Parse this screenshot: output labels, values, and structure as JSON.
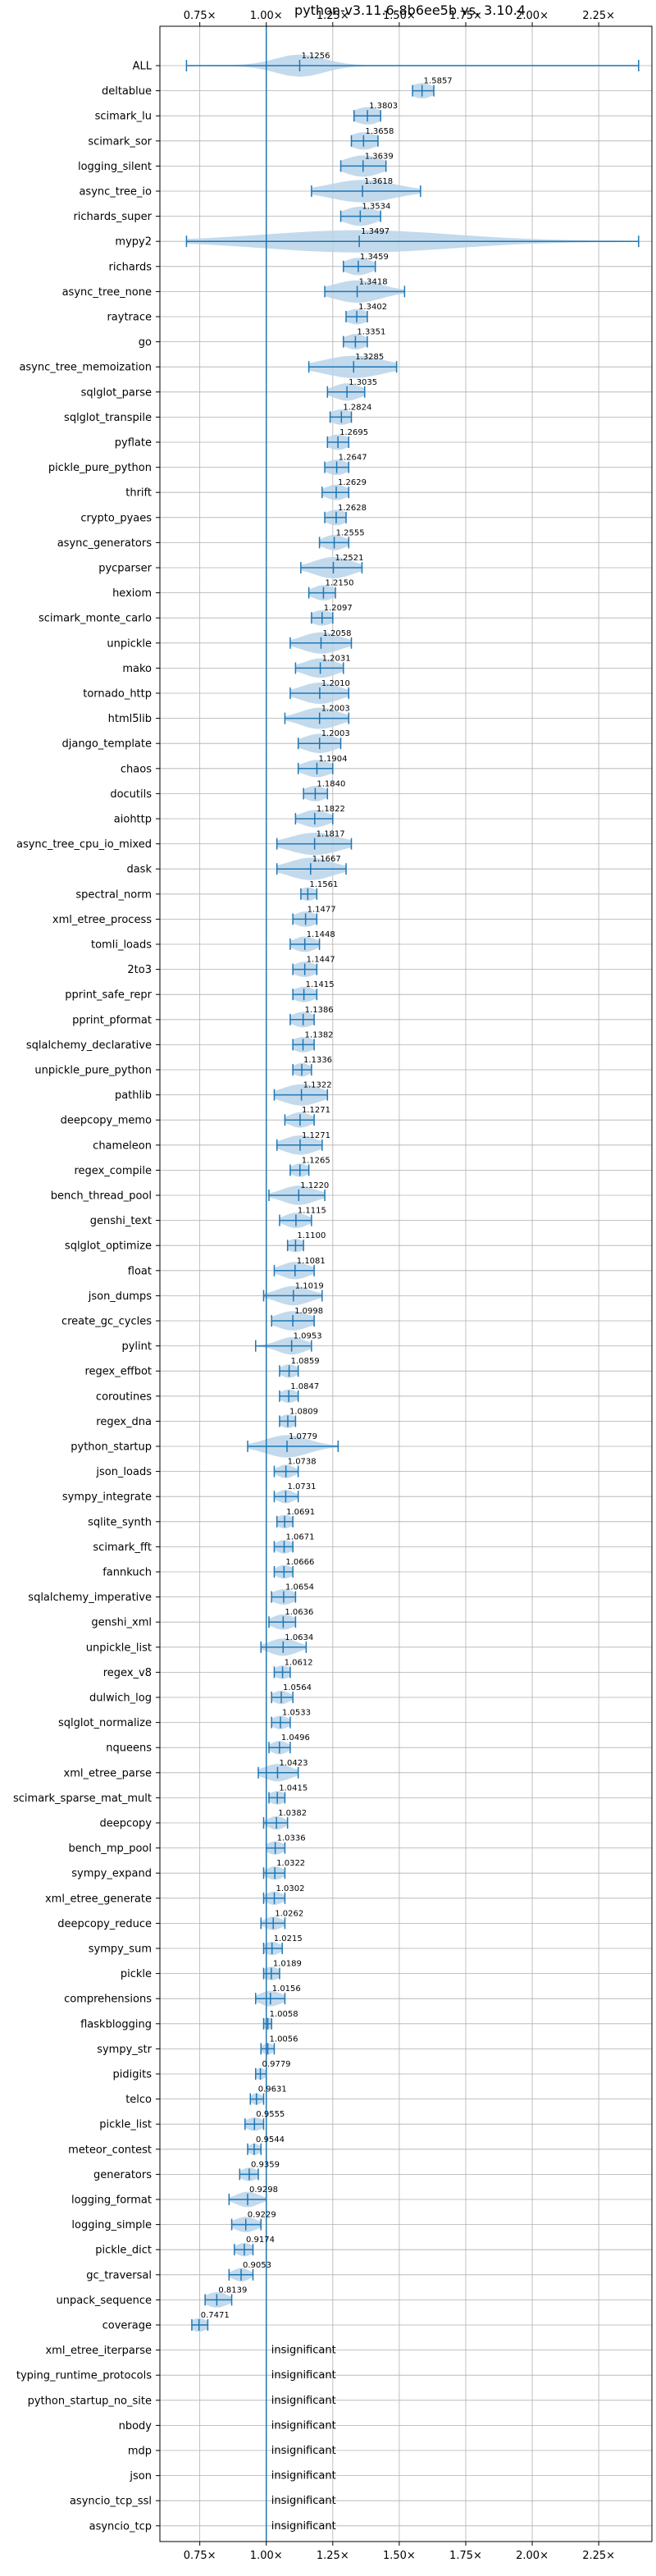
{
  "chart_data": {
    "type": "violin",
    "title": "python-v3.11.6-8b6ee5b vs. 3.10.4",
    "orientation": "horizontal",
    "xlim": [
      0.6,
      2.45
    ],
    "x_ticks": [
      0.75,
      1.0,
      1.25,
      1.5,
      1.75,
      2.0,
      2.25
    ],
    "x_tick_labels": [
      "0.75×",
      "1.00×",
      "1.25×",
      "1.50×",
      "1.75×",
      "2.00×",
      "2.25×"
    ],
    "reference_line": 1.0,
    "grid": true,
    "colors": {
      "violin": "#b9d4ea",
      "line": "#1f77b4"
    },
    "insignificant_label": "insignificant",
    "benchmarks": [
      {
        "name": "ALL",
        "value": 1.1256,
        "label": "1.1256",
        "min": 0.7,
        "max": 2.4,
        "spread": 0.09
      },
      {
        "name": "deltablue",
        "value": 1.5857,
        "label": "1.5857",
        "min": 1.55,
        "max": 1.63,
        "spread": 0.04
      },
      {
        "name": "scimark_lu",
        "value": 1.3803,
        "label": "1.3803",
        "min": 1.33,
        "max": 1.43,
        "spread": 0.05
      },
      {
        "name": "scimark_sor",
        "value": 1.3658,
        "label": "1.3658",
        "min": 1.32,
        "max": 1.42,
        "spread": 0.05
      },
      {
        "name": "logging_silent",
        "value": 1.3639,
        "label": "1.3639",
        "min": 1.28,
        "max": 1.45,
        "spread": 0.07
      },
      {
        "name": "async_tree_io",
        "value": 1.3618,
        "label": "1.3618",
        "min": 1.17,
        "max": 1.58,
        "spread": 0.12
      },
      {
        "name": "richards_super",
        "value": 1.3534,
        "label": "1.3534",
        "min": 1.28,
        "max": 1.43,
        "spread": 0.06
      },
      {
        "name": "mypy2",
        "value": 1.3497,
        "label": "1.3497",
        "min": 0.7,
        "max": 2.4,
        "spread": 0.35
      },
      {
        "name": "richards",
        "value": 1.3459,
        "label": "1.3459",
        "min": 1.29,
        "max": 1.41,
        "spread": 0.05
      },
      {
        "name": "async_tree_none",
        "value": 1.3418,
        "label": "1.3418",
        "min": 1.22,
        "max": 1.52,
        "spread": 0.09
      },
      {
        "name": "raytrace",
        "value": 1.3402,
        "label": "1.3402",
        "min": 1.3,
        "max": 1.38,
        "spread": 0.04
      },
      {
        "name": "go",
        "value": 1.3351,
        "label": "1.3351",
        "min": 1.29,
        "max": 1.38,
        "spread": 0.04
      },
      {
        "name": "async_tree_memoization",
        "value": 1.3285,
        "label": "1.3285",
        "min": 1.16,
        "max": 1.49,
        "spread": 0.11
      },
      {
        "name": "sqlglot_parse",
        "value": 1.3035,
        "label": "1.3035",
        "min": 1.23,
        "max": 1.37,
        "spread": 0.05
      },
      {
        "name": "sqlglot_transpile",
        "value": 1.2824,
        "label": "1.2824",
        "min": 1.24,
        "max": 1.32,
        "spread": 0.04
      },
      {
        "name": "pyflate",
        "value": 1.2695,
        "label": "1.2695",
        "min": 1.23,
        "max": 1.31,
        "spread": 0.04
      },
      {
        "name": "pickle_pure_python",
        "value": 1.2647,
        "label": "1.2647",
        "min": 1.22,
        "max": 1.31,
        "spread": 0.04
      },
      {
        "name": "thrift",
        "value": 1.2629,
        "label": "1.2629",
        "min": 1.21,
        "max": 1.31,
        "spread": 0.04
      },
      {
        "name": "crypto_pyaes",
        "value": 1.2628,
        "label": "1.2628",
        "min": 1.22,
        "max": 1.3,
        "spread": 0.04
      },
      {
        "name": "async_generators",
        "value": 1.2555,
        "label": "1.2555",
        "min": 1.2,
        "max": 1.31,
        "spread": 0.04
      },
      {
        "name": "pycparser",
        "value": 1.2521,
        "label": "1.2521",
        "min": 1.13,
        "max": 1.36,
        "spread": 0.07
      },
      {
        "name": "hexiom",
        "value": 1.215,
        "label": "1.2150",
        "min": 1.16,
        "max": 1.26,
        "spread": 0.04
      },
      {
        "name": "scimark_monte_carlo",
        "value": 1.2097,
        "label": "1.2097",
        "min": 1.17,
        "max": 1.25,
        "spread": 0.04
      },
      {
        "name": "unpickle",
        "value": 1.2058,
        "label": "1.2058",
        "min": 1.09,
        "max": 1.32,
        "spread": 0.07
      },
      {
        "name": "mako",
        "value": 1.2031,
        "label": "1.2031",
        "min": 1.11,
        "max": 1.29,
        "spread": 0.06
      },
      {
        "name": "tornado_http",
        "value": 1.201,
        "label": "1.2010",
        "min": 1.09,
        "max": 1.31,
        "spread": 0.07
      },
      {
        "name": "html5lib",
        "value": 1.2003,
        "label": "1.2003",
        "min": 1.07,
        "max": 1.31,
        "spread": 0.07
      },
      {
        "name": "django_template",
        "value": 1.2003,
        "label": "1.2003",
        "min": 1.12,
        "max": 1.28,
        "spread": 0.06
      },
      {
        "name": "chaos",
        "value": 1.1904,
        "label": "1.1904",
        "min": 1.12,
        "max": 1.25,
        "spread": 0.05
      },
      {
        "name": "docutils",
        "value": 1.184,
        "label": "1.1840",
        "min": 1.14,
        "max": 1.23,
        "spread": 0.04
      },
      {
        "name": "aiohttp",
        "value": 1.1822,
        "label": "1.1822",
        "min": 1.11,
        "max": 1.25,
        "spread": 0.05
      },
      {
        "name": "async_tree_cpu_io_mixed",
        "value": 1.1817,
        "label": "1.1817",
        "min": 1.04,
        "max": 1.32,
        "spread": 0.09
      },
      {
        "name": "dask",
        "value": 1.1667,
        "label": "1.1667",
        "min": 1.04,
        "max": 1.3,
        "spread": 0.08
      },
      {
        "name": "spectral_norm",
        "value": 1.1561,
        "label": "1.1561",
        "min": 1.13,
        "max": 1.19,
        "spread": 0.03
      },
      {
        "name": "xml_etree_process",
        "value": 1.1477,
        "label": "1.1477",
        "min": 1.1,
        "max": 1.19,
        "spread": 0.04
      },
      {
        "name": "tomli_loads",
        "value": 1.1448,
        "label": "1.1448",
        "min": 1.09,
        "max": 1.2,
        "spread": 0.04
      },
      {
        "name": "2to3",
        "value": 1.1447,
        "label": "1.1447",
        "min": 1.1,
        "max": 1.19,
        "spread": 0.04
      },
      {
        "name": "pprint_safe_repr",
        "value": 1.1415,
        "label": "1.1415",
        "min": 1.1,
        "max": 1.19,
        "spread": 0.04
      },
      {
        "name": "pprint_pformat",
        "value": 1.1386,
        "label": "1.1386",
        "min": 1.09,
        "max": 1.18,
        "spread": 0.04
      },
      {
        "name": "sqlalchemy_declarative",
        "value": 1.1382,
        "label": "1.1382",
        "min": 1.1,
        "max": 1.18,
        "spread": 0.04
      },
      {
        "name": "unpickle_pure_python",
        "value": 1.1336,
        "label": "1.1336",
        "min": 1.1,
        "max": 1.17,
        "spread": 0.03
      },
      {
        "name": "pathlib",
        "value": 1.1322,
        "label": "1.1322",
        "min": 1.03,
        "max": 1.23,
        "spread": 0.07
      },
      {
        "name": "deepcopy_memo",
        "value": 1.1271,
        "label": "1.1271",
        "min": 1.07,
        "max": 1.18,
        "spread": 0.04
      },
      {
        "name": "chameleon",
        "value": 1.1271,
        "label": "1.1271",
        "min": 1.04,
        "max": 1.21,
        "spread": 0.06
      },
      {
        "name": "regex_compile",
        "value": 1.1265,
        "label": "1.1265",
        "min": 1.09,
        "max": 1.16,
        "spread": 0.03
      },
      {
        "name": "bench_thread_pool",
        "value": 1.122,
        "label": "1.1220",
        "min": 1.01,
        "max": 1.22,
        "spread": 0.06
      },
      {
        "name": "genshi_text",
        "value": 1.1115,
        "label": "1.1115",
        "min": 1.05,
        "max": 1.17,
        "spread": 0.04
      },
      {
        "name": "sqlglot_optimize",
        "value": 1.11,
        "label": "1.1100",
        "min": 1.08,
        "max": 1.14,
        "spread": 0.03
      },
      {
        "name": "float",
        "value": 1.1081,
        "label": "1.1081",
        "min": 1.03,
        "max": 1.18,
        "spread": 0.05
      },
      {
        "name": "json_dumps",
        "value": 1.1019,
        "label": "1.1019",
        "min": 0.99,
        "max": 1.21,
        "spread": 0.06
      },
      {
        "name": "create_gc_cycles",
        "value": 1.0998,
        "label": "1.0998",
        "min": 1.02,
        "max": 1.18,
        "spread": 0.06
      },
      {
        "name": "pylint",
        "value": 1.0953,
        "label": "1.0953",
        "min": 0.96,
        "max": 1.17,
        "spread": 0.05
      },
      {
        "name": "regex_effbot",
        "value": 1.0859,
        "label": "1.0859",
        "min": 1.05,
        "max": 1.12,
        "spread": 0.03
      },
      {
        "name": "coroutines",
        "value": 1.0847,
        "label": "1.0847",
        "min": 1.05,
        "max": 1.12,
        "spread": 0.03
      },
      {
        "name": "regex_dna",
        "value": 1.0809,
        "label": "1.0809",
        "min": 1.05,
        "max": 1.11,
        "spread": 0.03
      },
      {
        "name": "python_startup",
        "value": 1.0779,
        "label": "1.0779",
        "min": 0.93,
        "max": 1.27,
        "spread": 0.08
      },
      {
        "name": "json_loads",
        "value": 1.0738,
        "label": "1.0738",
        "min": 1.03,
        "max": 1.12,
        "spread": 0.03
      },
      {
        "name": "sympy_integrate",
        "value": 1.0731,
        "label": "1.0731",
        "min": 1.03,
        "max": 1.12,
        "spread": 0.03
      },
      {
        "name": "sqlite_synth",
        "value": 1.0691,
        "label": "1.0691",
        "min": 1.04,
        "max": 1.1,
        "spread": 0.03
      },
      {
        "name": "scimark_fft",
        "value": 1.0671,
        "label": "1.0671",
        "min": 1.03,
        "max": 1.1,
        "spread": 0.03
      },
      {
        "name": "fannkuch",
        "value": 1.0666,
        "label": "1.0666",
        "min": 1.03,
        "max": 1.1,
        "spread": 0.03
      },
      {
        "name": "sqlalchemy_imperative",
        "value": 1.0654,
        "label": "1.0654",
        "min": 1.02,
        "max": 1.11,
        "spread": 0.04
      },
      {
        "name": "genshi_xml",
        "value": 1.0636,
        "label": "1.0636",
        "min": 1.01,
        "max": 1.11,
        "spread": 0.04
      },
      {
        "name": "unpickle_list",
        "value": 1.0634,
        "label": "1.0634",
        "min": 0.98,
        "max": 1.15,
        "spread": 0.05
      },
      {
        "name": "regex_v8",
        "value": 1.0612,
        "label": "1.0612",
        "min": 1.03,
        "max": 1.09,
        "spread": 0.03
      },
      {
        "name": "dulwich_log",
        "value": 1.0564,
        "label": "1.0564",
        "min": 1.02,
        "max": 1.1,
        "spread": 0.03
      },
      {
        "name": "sqlglot_normalize",
        "value": 1.0533,
        "label": "1.0533",
        "min": 1.02,
        "max": 1.09,
        "spread": 0.03
      },
      {
        "name": "nqueens",
        "value": 1.0496,
        "label": "1.0496",
        "min": 1.01,
        "max": 1.09,
        "spread": 0.03
      },
      {
        "name": "xml_etree_parse",
        "value": 1.0423,
        "label": "1.0423",
        "min": 0.97,
        "max": 1.12,
        "spread": 0.05
      },
      {
        "name": "scimark_sparse_mat_mult",
        "value": 1.0415,
        "label": "1.0415",
        "min": 1.01,
        "max": 1.07,
        "spread": 0.03
      },
      {
        "name": "deepcopy",
        "value": 1.0382,
        "label": "1.0382",
        "min": 0.99,
        "max": 1.08,
        "spread": 0.03
      },
      {
        "name": "bench_mp_pool",
        "value": 1.0336,
        "label": "1.0336",
        "min": 1.0,
        "max": 1.07,
        "spread": 0.03
      },
      {
        "name": "sympy_expand",
        "value": 1.0322,
        "label": "1.0322",
        "min": 0.99,
        "max": 1.07,
        "spread": 0.03
      },
      {
        "name": "xml_etree_generate",
        "value": 1.0302,
        "label": "1.0302",
        "min": 0.99,
        "max": 1.07,
        "spread": 0.03
      },
      {
        "name": "deepcopy_reduce",
        "value": 1.0262,
        "label": "1.0262",
        "min": 0.98,
        "max": 1.07,
        "spread": 0.03
      },
      {
        "name": "sympy_sum",
        "value": 1.0215,
        "label": "1.0215",
        "min": 0.99,
        "max": 1.06,
        "spread": 0.03
      },
      {
        "name": "pickle",
        "value": 1.0189,
        "label": "1.0189",
        "min": 0.99,
        "max": 1.05,
        "spread": 0.03
      },
      {
        "name": "comprehensions",
        "value": 1.0156,
        "label": "1.0156",
        "min": 0.96,
        "max": 1.07,
        "spread": 0.04
      },
      {
        "name": "flaskblogging",
        "value": 1.0058,
        "label": "1.0058",
        "min": 0.99,
        "max": 1.02,
        "spread": 0.02
      },
      {
        "name": "sympy_str",
        "value": 1.0056,
        "label": "1.0056",
        "min": 0.98,
        "max": 1.03,
        "spread": 0.02
      },
      {
        "name": "pidigits",
        "value": 0.9779,
        "label": "0.9779",
        "min": 0.96,
        "max": 1.0,
        "spread": 0.02
      },
      {
        "name": "telco",
        "value": 0.9631,
        "label": "0.9631",
        "min": 0.94,
        "max": 0.99,
        "spread": 0.02
      },
      {
        "name": "pickle_list",
        "value": 0.9555,
        "label": "0.9555",
        "min": 0.92,
        "max": 0.99,
        "spread": 0.03
      },
      {
        "name": "meteor_contest",
        "value": 0.9544,
        "label": "0.9544",
        "min": 0.93,
        "max": 0.98,
        "spread": 0.02
      },
      {
        "name": "generators",
        "value": 0.9359,
        "label": "0.9359",
        "min": 0.9,
        "max": 0.97,
        "spread": 0.03
      },
      {
        "name": "logging_format",
        "value": 0.9298,
        "label": "0.9298",
        "min": 0.86,
        "max": 1.0,
        "spread": 0.04
      },
      {
        "name": "logging_simple",
        "value": 0.9229,
        "label": "0.9229",
        "min": 0.87,
        "max": 0.98,
        "spread": 0.04
      },
      {
        "name": "pickle_dict",
        "value": 0.9174,
        "label": "0.9174",
        "min": 0.88,
        "max": 0.95,
        "spread": 0.03
      },
      {
        "name": "gc_traversal",
        "value": 0.9053,
        "label": "0.9053",
        "min": 0.86,
        "max": 0.95,
        "spread": 0.03
      },
      {
        "name": "unpack_sequence",
        "value": 0.8139,
        "label": "0.8139",
        "min": 0.77,
        "max": 0.87,
        "spread": 0.04
      },
      {
        "name": "coverage",
        "value": 0.7471,
        "label": "0.7471",
        "min": 0.72,
        "max": 0.78,
        "spread": 0.03
      },
      {
        "name": "xml_etree_iterparse",
        "value": null,
        "label": "insignificant"
      },
      {
        "name": "typing_runtime_protocols",
        "value": null,
        "label": "insignificant"
      },
      {
        "name": "python_startup_no_site",
        "value": null,
        "label": "insignificant"
      },
      {
        "name": "nbody",
        "value": null,
        "label": "insignificant"
      },
      {
        "name": "mdp",
        "value": null,
        "label": "insignificant"
      },
      {
        "name": "json",
        "value": null,
        "label": "insignificant"
      },
      {
        "name": "asyncio_tcp_ssl",
        "value": null,
        "label": "insignificant"
      },
      {
        "name": "asyncio_tcp",
        "value": null,
        "label": "insignificant"
      }
    ]
  }
}
